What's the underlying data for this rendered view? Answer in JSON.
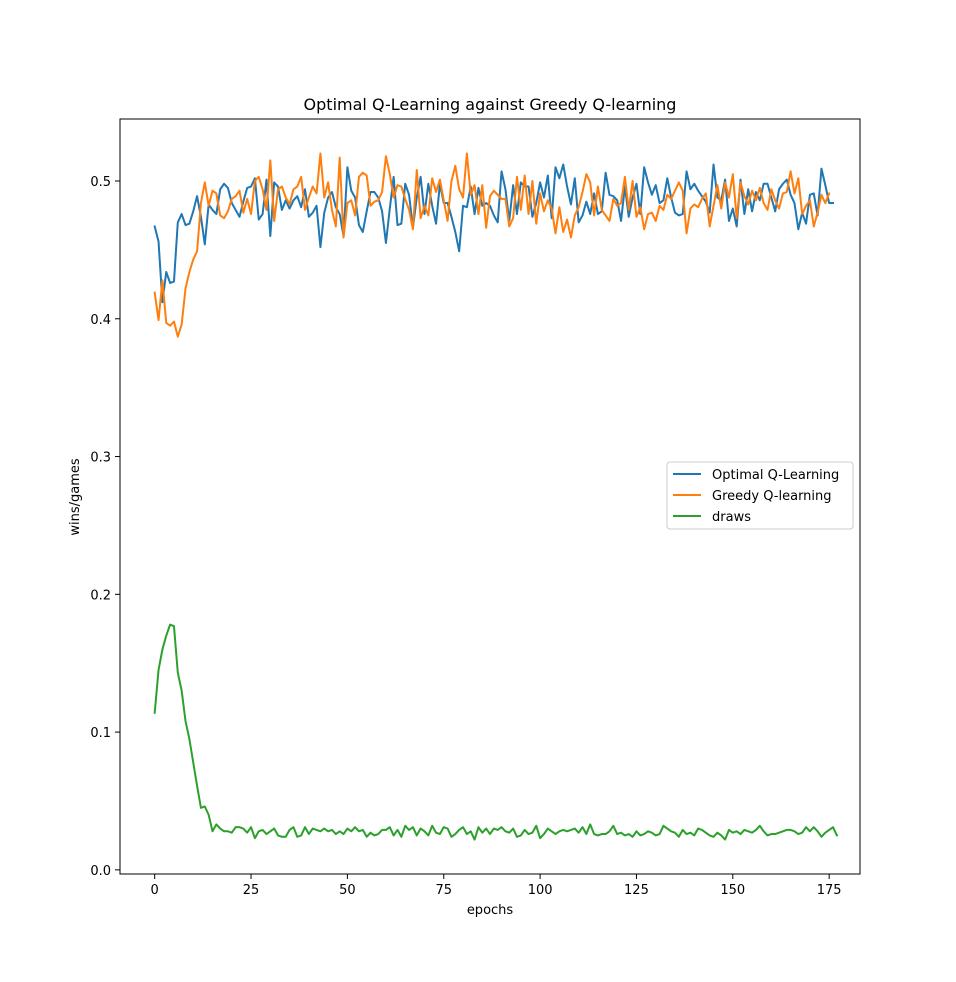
{
  "chart_data": {
    "type": "line",
    "title": "Optimal Q-Learning against Greedy Q-learning",
    "xlabel": "epochs",
    "ylabel": "wins/games",
    "xlim": [
      -9,
      183
    ],
    "ylim": [
      -0.003,
      0.545
    ],
    "xticks": [
      0,
      25,
      50,
      75,
      100,
      125,
      150,
      175
    ],
    "yticks": [
      0.0,
      0.1,
      0.2,
      0.3,
      0.4,
      0.5
    ],
    "ytick_labels": [
      "0.0",
      "0.1",
      "0.2",
      "0.3",
      "0.4",
      "0.5"
    ],
    "grid": false,
    "legend_position": "center-right",
    "series": [
      {
        "name": "Optimal Q-Learning",
        "color": "#1f77b4",
        "values": [
          0.467,
          0.456,
          0.412,
          0.434,
          0.426,
          0.427,
          0.47,
          0.476,
          0.468,
          0.469,
          0.478,
          0.489,
          0.474,
          0.454,
          0.483,
          0.479,
          0.476,
          0.494,
          0.498,
          0.495,
          0.484,
          0.479,
          0.474,
          0.485,
          0.495,
          0.496,
          0.502,
          0.472,
          0.476,
          0.501,
          0.46,
          0.499,
          0.496,
          0.479,
          0.486,
          0.48,
          0.486,
          0.489,
          0.481,
          0.494,
          0.474,
          0.477,
          0.482,
          0.452,
          0.477,
          0.488,
          0.492,
          0.481,
          0.476,
          0.46,
          0.51,
          0.493,
          0.488,
          0.468,
          0.463,
          0.478,
          0.492,
          0.492,
          0.488,
          0.478,
          0.455,
          0.48,
          0.503,
          0.468,
          0.469,
          0.498,
          0.49,
          0.466,
          0.488,
          0.503,
          0.476,
          0.498,
          0.482,
          0.469,
          0.498,
          0.484,
          0.484,
          0.474,
          0.463,
          0.449,
          0.482,
          0.481,
          0.496,
          0.476,
          0.495,
          0.482,
          0.484,
          0.482,
          0.475,
          0.47,
          0.507,
          0.494,
          0.471,
          0.497,
          0.476,
          0.499,
          0.496,
          0.496,
          0.474,
          0.484,
          0.499,
          0.488,
          0.504,
          0.473,
          0.51,
          0.502,
          0.512,
          0.496,
          0.483,
          0.502,
          0.47,
          0.475,
          0.485,
          0.476,
          0.491,
          0.476,
          0.478,
          0.506,
          0.49,
          0.489,
          0.486,
          0.471,
          0.496,
          0.474,
          0.488,
          0.498,
          0.476,
          0.51,
          0.499,
          0.49,
          0.497,
          0.484,
          0.486,
          0.502,
          0.488,
          0.477,
          0.475,
          0.476,
          0.507,
          0.494,
          0.498,
          0.493,
          0.489,
          0.485,
          0.477,
          0.512,
          0.488,
          0.486,
          0.501,
          0.471,
          0.48,
          0.467,
          0.501,
          0.476,
          0.494,
          0.478,
          0.492,
          0.486,
          0.498,
          0.498,
          0.488,
          0.478,
          0.494,
          0.498,
          0.501,
          0.49,
          0.484,
          0.465,
          0.477,
          0.469,
          0.49,
          0.491,
          0.475,
          0.509,
          0.497,
          0.484,
          0.484
        ]
      },
      {
        "name": "Greedy Q-learning",
        "color": "#ff7f0e",
        "values": [
          0.419,
          0.399,
          0.428,
          0.397,
          0.395,
          0.398,
          0.387,
          0.396,
          0.422,
          0.434,
          0.443,
          0.449,
          0.484,
          0.499,
          0.482,
          0.493,
          0.491,
          0.475,
          0.473,
          0.478,
          0.487,
          0.489,
          0.493,
          0.477,
          0.487,
          0.476,
          0.5,
          0.503,
          0.494,
          0.479,
          0.515,
          0.471,
          0.494,
          0.496,
          0.488,
          0.483,
          0.494,
          0.496,
          0.503,
          0.479,
          0.488,
          0.496,
          0.491,
          0.52,
          0.488,
          0.499,
          0.479,
          0.467,
          0.517,
          0.459,
          0.484,
          0.486,
          0.475,
          0.503,
          0.506,
          0.504,
          0.482,
          0.485,
          0.486,
          0.492,
          0.518,
          0.505,
          0.488,
          0.497,
          0.496,
          0.487,
          0.479,
          0.465,
          0.508,
          0.473,
          0.482,
          0.475,
          0.502,
          0.492,
          0.501,
          0.486,
          0.471,
          0.5,
          0.511,
          0.494,
          0.488,
          0.52,
          0.49,
          0.497,
          0.476,
          0.497,
          0.466,
          0.489,
          0.493,
          0.49,
          0.487,
          0.487,
          0.467,
          0.473,
          0.503,
          0.479,
          0.504,
          0.476,
          0.5,
          0.469,
          0.491,
          0.478,
          0.486,
          0.48,
          0.462,
          0.481,
          0.463,
          0.472,
          0.459,
          0.475,
          0.481,
          0.492,
          0.505,
          0.499,
          0.475,
          0.496,
          0.479,
          0.475,
          0.471,
          0.487,
          0.482,
          0.484,
          0.503,
          0.479,
          0.5,
          0.474,
          0.481,
          0.465,
          0.476,
          0.477,
          0.471,
          0.482,
          0.479,
          0.49,
          0.487,
          0.493,
          0.499,
          0.493,
          0.462,
          0.48,
          0.483,
          0.481,
          0.487,
          0.491,
          0.467,
          0.482,
          0.497,
          0.48,
          0.499,
          0.488,
          0.505,
          0.473,
          0.499,
          0.489,
          0.483,
          0.493,
          0.486,
          0.495,
          0.484,
          0.479,
          0.494,
          0.486,
          0.48,
          0.491,
          0.492,
          0.507,
          0.491,
          0.502,
          0.476,
          0.482,
          0.486,
          0.467,
          0.477,
          0.49,
          0.484,
          0.491
        ]
      },
      {
        "name": "draws",
        "color": "#2ca02c",
        "values": [
          0.114,
          0.145,
          0.16,
          0.17,
          0.178,
          0.177,
          0.143,
          0.13,
          0.108,
          0.095,
          0.078,
          0.061,
          0.045,
          0.046,
          0.04,
          0.028,
          0.033,
          0.03,
          0.028,
          0.028,
          0.027,
          0.031,
          0.031,
          0.03,
          0.027,
          0.031,
          0.023,
          0.028,
          0.029,
          0.026,
          0.028,
          0.03,
          0.025,
          0.024,
          0.024,
          0.029,
          0.031,
          0.024,
          0.025,
          0.031,
          0.026,
          0.03,
          0.029,
          0.028,
          0.03,
          0.028,
          0.029,
          0.026,
          0.028,
          0.026,
          0.03,
          0.028,
          0.031,
          0.028,
          0.029,
          0.024,
          0.027,
          0.025,
          0.026,
          0.029,
          0.029,
          0.031,
          0.025,
          0.029,
          0.024,
          0.032,
          0.029,
          0.031,
          0.025,
          0.03,
          0.028,
          0.025,
          0.032,
          0.027,
          0.026,
          0.031,
          0.03,
          0.024,
          0.026,
          0.029,
          0.031,
          0.026,
          0.028,
          0.022,
          0.031,
          0.027,
          0.03,
          0.026,
          0.03,
          0.029,
          0.031,
          0.028,
          0.027,
          0.03,
          0.024,
          0.025,
          0.029,
          0.026,
          0.027,
          0.032,
          0.023,
          0.026,
          0.03,
          0.028,
          0.026,
          0.028,
          0.029,
          0.028,
          0.029,
          0.03,
          0.027,
          0.031,
          0.026,
          0.033,
          0.026,
          0.025,
          0.026,
          0.026,
          0.028,
          0.032,
          0.026,
          0.027,
          0.025,
          0.026,
          0.024,
          0.028,
          0.025,
          0.026,
          0.028,
          0.027,
          0.025,
          0.026,
          0.032,
          0.03,
          0.028,
          0.027,
          0.024,
          0.029,
          0.026,
          0.027,
          0.025,
          0.03,
          0.029,
          0.027,
          0.025,
          0.024,
          0.027,
          0.025,
          0.022,
          0.029,
          0.027,
          0.028,
          0.026,
          0.029,
          0.028,
          0.027,
          0.029,
          0.032,
          0.028,
          0.025,
          0.026,
          0.026,
          0.027,
          0.028,
          0.029,
          0.029,
          0.028,
          0.026,
          0.027,
          0.031,
          0.028,
          0.031,
          0.028,
          0.024,
          0.027,
          0.029,
          0.031,
          0.025
        ]
      }
    ]
  }
}
